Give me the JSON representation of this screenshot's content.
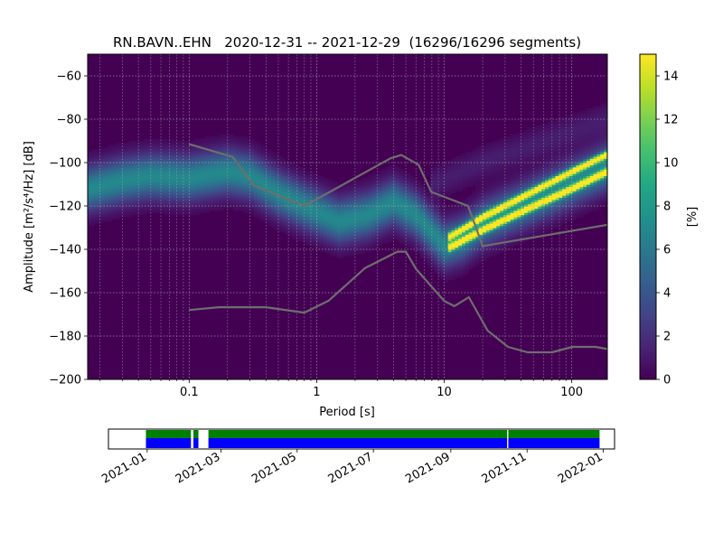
{
  "chart_data": {
    "type": "heatmap",
    "title": "RN.BAVN..EHN   2020-12-31 -- 2021-12-29  (16296/16296 segments)",
    "xlabel": "Period [s]",
    "ylabel": "Amplitude [m²/s⁴/Hz] [dB]",
    "x_scale": "log",
    "xlim": [
      0.016,
      190
    ],
    "ylim": [
      -200,
      -50
    ],
    "x_ticks": [
      {
        "value": 0.1,
        "label": "0.1"
      },
      {
        "value": 1,
        "label": "1"
      },
      {
        "value": 10,
        "label": "10"
      },
      {
        "value": 100,
        "label": "100"
      }
    ],
    "y_ticks": [
      -200,
      -180,
      -160,
      -140,
      -120,
      -100,
      -80,
      -60
    ],
    "grid": true,
    "colormap": "viridis",
    "colorbar": {
      "label": "[%]",
      "range": [
        0,
        15
      ],
      "ticks": [
        0,
        2,
        4,
        6,
        8,
        10,
        12,
        14
      ]
    },
    "density_bands": [
      {
        "name": "main",
        "points": [
          [
            0.016,
            -112
          ],
          [
            0.03,
            -108
          ],
          [
            0.05,
            -106
          ],
          [
            0.1,
            -107
          ],
          [
            0.2,
            -104
          ],
          [
            0.3,
            -106
          ],
          [
            0.5,
            -114
          ],
          [
            0.8,
            -120
          ],
          [
            1.5,
            -127
          ],
          [
            2.5,
            -124
          ],
          [
            4,
            -118
          ],
          [
            6,
            -124
          ],
          [
            10,
            -138
          ],
          [
            14,
            -135
          ],
          [
            20,
            -128
          ],
          [
            40,
            -120
          ],
          [
            80,
            -112
          ],
          [
            190,
            -102
          ]
        ],
        "spread": 7,
        "peak": 7
      },
      {
        "name": "upper-line",
        "points": [
          [
            11,
            -134
          ],
          [
            20,
            -125
          ],
          [
            50,
            -113
          ],
          [
            100,
            -104
          ],
          [
            190,
            -96
          ]
        ],
        "spread": 1.2,
        "peak": 14
      },
      {
        "name": "lower-line",
        "points": [
          [
            11,
            -139
          ],
          [
            20,
            -131
          ],
          [
            50,
            -120
          ],
          [
            100,
            -112
          ],
          [
            190,
            -104
          ]
        ],
        "spread": 1.2,
        "peak": 14
      },
      {
        "name": "faint-upper",
        "points": [
          [
            8,
            -110
          ],
          [
            20,
            -100
          ],
          [
            60,
            -90
          ],
          [
            190,
            -80
          ]
        ],
        "spread": 5,
        "peak": 1.2
      }
    ],
    "noise_models": [
      {
        "name": "NHNM",
        "points": [
          [
            0.1,
            -91.5
          ],
          [
            0.22,
            -97.4
          ],
          [
            0.32,
            -110.5
          ],
          [
            0.8,
            -120
          ],
          [
            3.8,
            -98
          ],
          [
            4.6,
            -96.5
          ],
          [
            6.3,
            -101
          ],
          [
            7.9,
            -113.5
          ],
          [
            15.4,
            -120
          ],
          [
            20,
            -138.5
          ],
          [
            354,
            -126
          ]
        ]
      },
      {
        "name": "NLNM",
        "points": [
          [
            0.1,
            -168
          ],
          [
            0.17,
            -166.7
          ],
          [
            0.4,
            -166.7
          ],
          [
            0.8,
            -169.2
          ],
          [
            1.24,
            -163.7
          ],
          [
            2.4,
            -148.6
          ],
          [
            4.3,
            -141.1
          ],
          [
            5,
            -141.1
          ],
          [
            6,
            -149
          ],
          [
            10,
            -163.8
          ],
          [
            12,
            -166.2
          ],
          [
            15.6,
            -162.1
          ],
          [
            21.9,
            -177.5
          ],
          [
            31.6,
            -185
          ],
          [
            45,
            -187.5
          ],
          [
            70,
            -187.5
          ],
          [
            101,
            -185
          ],
          [
            154,
            -185
          ],
          [
            190,
            -186
          ]
        ]
      }
    ],
    "timeline": {
      "ticks": [
        "2021-01",
        "2021-03",
        "2021-05",
        "2021-07",
        "2021-09",
        "2021-11",
        "2022-01"
      ],
      "tick_dates": [
        "2021-01-01",
        "2021-03-01",
        "2021-05-01",
        "2021-07-01",
        "2021-09-01",
        "2021-11-01",
        "2022-01-01"
      ],
      "range": [
        "2020-12-01",
        "2022-01-10"
      ],
      "data_segments": [
        [
          "2020-12-31",
          "2021-02-05"
        ],
        [
          "2021-02-07",
          "2021-02-11"
        ],
        [
          "2021-02-19",
          "2021-10-16"
        ],
        [
          "2021-10-17",
          "2021-12-29"
        ]
      ],
      "colors": {
        "available": "#008000",
        "processed": "#0000ff"
      }
    }
  }
}
